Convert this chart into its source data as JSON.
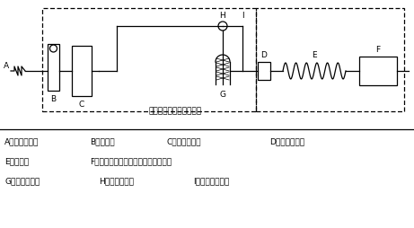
{
  "legend_A": "A　窒素ボンベ",
  "legend_B": "B　流量計",
  "legend_C": "C　流量調整弁",
  "legend_D": "D　試料導入部",
  "legend_E": "E　カラム",
  "legend_F": "F　ガスクロマトグラフ質量分析装置",
  "legend_G": "G　試料濃縮管",
  "legend_H": "H　三方コック",
  "legend_I": "I　バイパス流路",
  "gc_label": "ガスクロマトグラフ本体",
  "bg": "#ffffff",
  "fg": "#000000"
}
